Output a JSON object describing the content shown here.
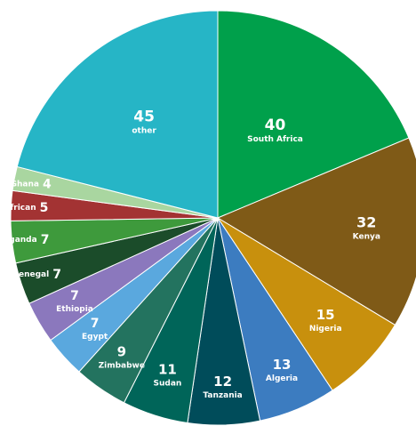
{
  "chart_data": {
    "type": "pie",
    "title": "",
    "slices": [
      {
        "label": "South Africa",
        "value": 40,
        "color": "#00a04b"
      },
      {
        "label": "Kenya",
        "value": 32,
        "color": "#7f5a17"
      },
      {
        "label": "Nigeria",
        "value": 15,
        "color": "#c8900d"
      },
      {
        "label": "Algeria",
        "value": 13,
        "color": "#3c7cc0"
      },
      {
        "label": "Tanzania",
        "value": 12,
        "color": "#004c5a"
      },
      {
        "label": "Sudan",
        "value": 11,
        "color": "#006559"
      },
      {
        "label": "Zimbabwe",
        "value": 9,
        "color": "#23735f"
      },
      {
        "label": "Egypt",
        "value": 7,
        "color": "#5aa8de"
      },
      {
        "label": "Ethiopia",
        "value": 7,
        "color": "#8b78bd"
      },
      {
        "label": "Senegal",
        "value": 7,
        "color": "#1b4c2a"
      },
      {
        "label": "Uganda",
        "value": 7,
        "color": "#3e9a3c"
      },
      {
        "label": "pan-African",
        "value": 5,
        "color": "#a33333"
      },
      {
        "label": "Ghana",
        "value": 4,
        "color": "#a9d6a0"
      },
      {
        "label": "other",
        "value": 45,
        "color": "#26b5c6"
      }
    ],
    "start_angle_deg": 0,
    "direction": "clockwise",
    "legend": "none"
  }
}
